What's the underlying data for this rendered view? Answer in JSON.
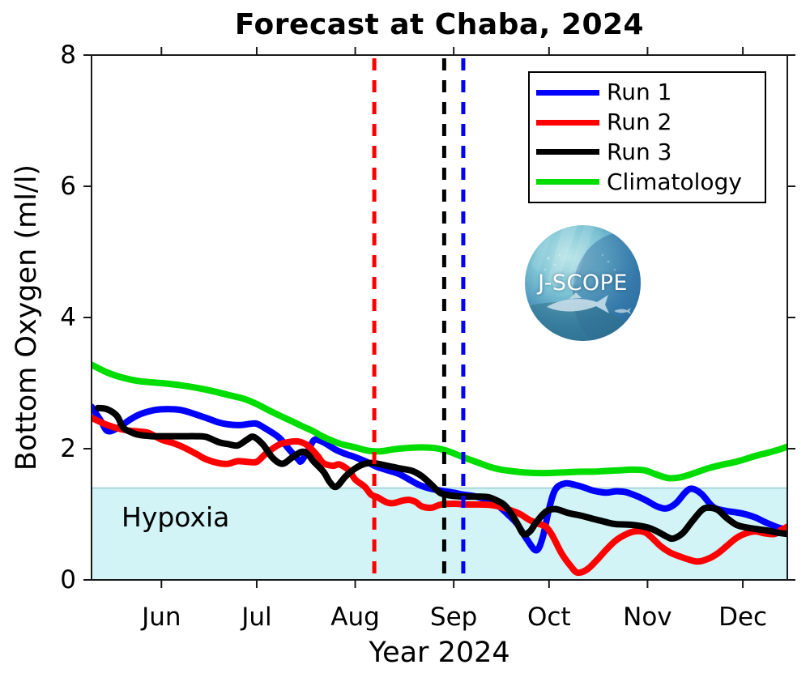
{
  "title": "Forecast at Chaba, 2024",
  "axes": {
    "xlabel": "Year 2024",
    "ylabel": "Bottom Oxygen (ml/l)",
    "yticks": [
      0,
      2,
      4,
      6,
      8
    ],
    "xticks": [
      "Jun",
      "Jul",
      "Aug",
      "Sep",
      "Oct",
      "Nov",
      "Dec"
    ]
  },
  "hypoxia_label": "Hypoxia",
  "logo_text": "J-SCOPE",
  "colors": {
    "run1": "#0000ff",
    "run2": "#ff0000",
    "run3": "#000000",
    "climatology": "#00dd00",
    "hypoxia_fill": "#d2f4f6",
    "hypoxia_edge": "#a8d8dc",
    "axis": "#1a1a1a"
  },
  "legend": {
    "items": [
      {
        "label": "Run 1",
        "color": "#0000ff"
      },
      {
        "label": "Run 2",
        "color": "#ff0000"
      },
      {
        "label": "Run 3",
        "color": "#000000"
      },
      {
        "label": "Climatology",
        "color": "#00dd00"
      }
    ]
  },
  "chart_data": {
    "type": "line",
    "title": "Forecast at Chaba, 2024",
    "xlabel": "Year 2024",
    "ylabel": "Bottom Oxygen (ml/l)",
    "x_unit": "day_of_year_2024",
    "xlim": [
      131,
      350
    ],
    "ylim": [
      0,
      8
    ],
    "grid": false,
    "legend_position": "upper right",
    "x_ticks": [
      {
        "label": "Jun",
        "day_of_year": 153
      },
      {
        "label": "Jul",
        "day_of_year": 183
      },
      {
        "label": "Aug",
        "day_of_year": 214
      },
      {
        "label": "Sep",
        "day_of_year": 245
      },
      {
        "label": "Oct",
        "day_of_year": 275
      },
      {
        "label": "Nov",
        "day_of_year": 306
      },
      {
        "label": "Dec",
        "day_of_year": 336
      }
    ],
    "hypoxia_region": {
      "label": "Hypoxia",
      "threshold_ml_per_l": 1.4
    },
    "init_lines": [
      {
        "name": "run2-init-line",
        "color": "#ff0000",
        "day_of_year": 220
      },
      {
        "name": "run3-init-line",
        "color": "#000000",
        "day_of_year": 242
      },
      {
        "name": "run1-init-line",
        "color": "#0000ff",
        "day_of_year": 248
      }
    ],
    "series": [
      {
        "name": "Run 1",
        "color": "#0000ff",
        "points": [
          [
            131,
            2.64
          ],
          [
            134,
            2.42
          ],
          [
            136,
            2.27
          ],
          [
            139,
            2.31
          ],
          [
            143,
            2.44
          ],
          [
            146,
            2.52
          ],
          [
            150,
            2.58
          ],
          [
            153,
            2.6
          ],
          [
            157,
            2.6
          ],
          [
            160,
            2.58
          ],
          [
            164,
            2.52
          ],
          [
            167,
            2.47
          ],
          [
            171,
            2.4
          ],
          [
            174,
            2.37
          ],
          [
            178,
            2.36
          ],
          [
            181,
            2.38
          ],
          [
            183,
            2.38
          ],
          [
            186,
            2.3
          ],
          [
            190,
            2.17
          ],
          [
            193,
            2.0
          ],
          [
            196,
            1.84
          ],
          [
            197,
            1.81
          ],
          [
            199,
            1.96
          ],
          [
            201,
            2.13
          ],
          [
            203,
            2.12
          ],
          [
            205,
            2.07
          ],
          [
            208,
            1.98
          ],
          [
            211,
            1.92
          ],
          [
            214,
            1.87
          ],
          [
            218,
            1.79
          ],
          [
            221,
            1.72
          ],
          [
            225,
            1.66
          ],
          [
            228,
            1.61
          ],
          [
            231,
            1.53
          ],
          [
            234,
            1.45
          ],
          [
            237,
            1.4
          ],
          [
            241,
            1.36
          ],
          [
            245,
            1.33
          ],
          [
            248,
            1.3
          ],
          [
            252,
            1.27
          ],
          [
            256,
            1.21
          ],
          [
            259,
            1.13
          ],
          [
            262,
            1.0
          ],
          [
            265,
            0.85
          ],
          [
            268,
            0.62
          ],
          [
            271,
            0.45
          ],
          [
            273,
            0.65
          ],
          [
            275,
            1.08
          ],
          [
            277,
            1.38
          ],
          [
            280,
            1.47
          ],
          [
            283,
            1.45
          ],
          [
            286,
            1.41
          ],
          [
            289,
            1.36
          ],
          [
            293,
            1.33
          ],
          [
            296,
            1.35
          ],
          [
            299,
            1.34
          ],
          [
            303,
            1.27
          ],
          [
            306,
            1.2
          ],
          [
            309,
            1.12
          ],
          [
            312,
            1.09
          ],
          [
            315,
            1.17
          ],
          [
            318,
            1.34
          ],
          [
            320,
            1.39
          ],
          [
            323,
            1.31
          ],
          [
            326,
            1.14
          ],
          [
            328,
            1.08
          ],
          [
            331,
            1.05
          ],
          [
            336,
            1.01
          ],
          [
            340,
            0.95
          ],
          [
            343,
            0.88
          ],
          [
            347,
            0.8
          ],
          [
            350,
            0.76
          ]
        ]
      },
      {
        "name": "Run 2",
        "color": "#ff0000",
        "points": [
          [
            131,
            2.47
          ],
          [
            136,
            2.36
          ],
          [
            141,
            2.29
          ],
          [
            146,
            2.26
          ],
          [
            149,
            2.24
          ],
          [
            153,
            2.14
          ],
          [
            157,
            2.08
          ],
          [
            160,
            2.02
          ],
          [
            164,
            1.92
          ],
          [
            167,
            1.84
          ],
          [
            171,
            1.78
          ],
          [
            174,
            1.77
          ],
          [
            177,
            1.81
          ],
          [
            180,
            1.8
          ],
          [
            183,
            1.8
          ],
          [
            186,
            1.93
          ],
          [
            190,
            2.06
          ],
          [
            193,
            2.1
          ],
          [
            196,
            2.11
          ],
          [
            199,
            2.05
          ],
          [
            202,
            1.9
          ],
          [
            204,
            1.78
          ],
          [
            207,
            1.74
          ],
          [
            209,
            1.76
          ],
          [
            212,
            1.67
          ],
          [
            214,
            1.53
          ],
          [
            217,
            1.42
          ],
          [
            219,
            1.3
          ],
          [
            221,
            1.26
          ],
          [
            224,
            1.18
          ],
          [
            226,
            1.17
          ],
          [
            229,
            1.21
          ],
          [
            231,
            1.22
          ],
          [
            233,
            1.19
          ],
          [
            235,
            1.12
          ],
          [
            238,
            1.1
          ],
          [
            241,
            1.15
          ],
          [
            245,
            1.16
          ],
          [
            249,
            1.15
          ],
          [
            253,
            1.15
          ],
          [
            257,
            1.14
          ],
          [
            260,
            1.11
          ],
          [
            263,
            1.06
          ],
          [
            266,
            1.0
          ],
          [
            269,
            0.91
          ],
          [
            272,
            0.85
          ],
          [
            274,
            0.81
          ],
          [
            276,
            0.68
          ],
          [
            279,
            0.4
          ],
          [
            282,
            0.2
          ],
          [
            284,
            0.11
          ],
          [
            287,
            0.16
          ],
          [
            290,
            0.3
          ],
          [
            293,
            0.46
          ],
          [
            296,
            0.6
          ],
          [
            299,
            0.69
          ],
          [
            302,
            0.74
          ],
          [
            305,
            0.73
          ],
          [
            307,
            0.66
          ],
          [
            310,
            0.52
          ],
          [
            313,
            0.42
          ],
          [
            316,
            0.36
          ],
          [
            319,
            0.31
          ],
          [
            322,
            0.28
          ],
          [
            325,
            0.32
          ],
          [
            328,
            0.4
          ],
          [
            331,
            0.52
          ],
          [
            334,
            0.64
          ],
          [
            337,
            0.71
          ],
          [
            340,
            0.74
          ],
          [
            343,
            0.71
          ],
          [
            346,
            0.7
          ],
          [
            348,
            0.76
          ],
          [
            350,
            0.81
          ]
        ]
      },
      {
        "name": "Run 3",
        "color": "#000000",
        "points": [
          [
            133,
            2.62
          ],
          [
            136,
            2.6
          ],
          [
            139,
            2.5
          ],
          [
            141,
            2.32
          ],
          [
            144,
            2.24
          ],
          [
            146,
            2.21
          ],
          [
            150,
            2.19
          ],
          [
            153,
            2.19
          ],
          [
            157,
            2.19
          ],
          [
            160,
            2.19
          ],
          [
            164,
            2.19
          ],
          [
            167,
            2.18
          ],
          [
            171,
            2.1
          ],
          [
            174,
            2.07
          ],
          [
            177,
            2.05
          ],
          [
            180,
            2.14
          ],
          [
            182,
            2.18
          ],
          [
            185,
            2.06
          ],
          [
            188,
            1.86
          ],
          [
            191,
            1.77
          ],
          [
            194,
            1.86
          ],
          [
            197,
            1.95
          ],
          [
            199,
            1.92
          ],
          [
            201,
            1.8
          ],
          [
            204,
            1.65
          ],
          [
            206,
            1.49
          ],
          [
            208,
            1.42
          ],
          [
            211,
            1.58
          ],
          [
            214,
            1.7
          ],
          [
            217,
            1.77
          ],
          [
            220,
            1.78
          ],
          [
            224,
            1.74
          ],
          [
            228,
            1.7
          ],
          [
            232,
            1.66
          ],
          [
            235,
            1.58
          ],
          [
            238,
            1.45
          ],
          [
            241,
            1.32
          ],
          [
            245,
            1.28
          ],
          [
            249,
            1.27
          ],
          [
            253,
            1.27
          ],
          [
            256,
            1.26
          ],
          [
            259,
            1.2
          ],
          [
            261,
            1.14
          ],
          [
            263,
            1.02
          ],
          [
            265,
            0.86
          ],
          [
            267,
            0.7
          ],
          [
            269,
            0.74
          ],
          [
            271,
            0.88
          ],
          [
            274,
            1.04
          ],
          [
            277,
            1.08
          ],
          [
            281,
            1.02
          ],
          [
            285,
            0.98
          ],
          [
            289,
            0.93
          ],
          [
            293,
            0.88
          ],
          [
            296,
            0.85
          ],
          [
            301,
            0.84
          ],
          [
            306,
            0.8
          ],
          [
            309,
            0.74
          ],
          [
            312,
            0.66
          ],
          [
            314,
            0.63
          ],
          [
            317,
            0.71
          ],
          [
            320,
            0.89
          ],
          [
            323,
            1.06
          ],
          [
            325,
            1.1
          ],
          [
            328,
            1.07
          ],
          [
            331,
            0.94
          ],
          [
            334,
            0.84
          ],
          [
            337,
            0.8
          ],
          [
            341,
            0.77
          ],
          [
            344,
            0.75
          ],
          [
            347,
            0.72
          ],
          [
            350,
            0.7
          ]
        ]
      },
      {
        "name": "Climatology",
        "color": "#00dd00",
        "points": [
          [
            131,
            3.28
          ],
          [
            136,
            3.16
          ],
          [
            141,
            3.08
          ],
          [
            146,
            3.03
          ],
          [
            153,
            3.0
          ],
          [
            160,
            2.96
          ],
          [
            167,
            2.9
          ],
          [
            174,
            2.82
          ],
          [
            179,
            2.76
          ],
          [
            183,
            2.68
          ],
          [
            187,
            2.58
          ],
          [
            190,
            2.51
          ],
          [
            194,
            2.42
          ],
          [
            197,
            2.35
          ],
          [
            201,
            2.26
          ],
          [
            204,
            2.18
          ],
          [
            209,
            2.08
          ],
          [
            214,
            2.02
          ],
          [
            218,
            1.97
          ],
          [
            222,
            1.96
          ],
          [
            226,
            1.99
          ],
          [
            230,
            2.01
          ],
          [
            235,
            2.02
          ],
          [
            239,
            2.01
          ],
          [
            242,
            1.98
          ],
          [
            245,
            1.93
          ],
          [
            248,
            1.87
          ],
          [
            252,
            1.8
          ],
          [
            256,
            1.73
          ],
          [
            259,
            1.69
          ],
          [
            263,
            1.66
          ],
          [
            267,
            1.64
          ],
          [
            271,
            1.63
          ],
          [
            275,
            1.63
          ],
          [
            280,
            1.64
          ],
          [
            285,
            1.65
          ],
          [
            289,
            1.65
          ],
          [
            293,
            1.66
          ],
          [
            297,
            1.67
          ],
          [
            301,
            1.68
          ],
          [
            305,
            1.67
          ],
          [
            308,
            1.62
          ],
          [
            311,
            1.57
          ],
          [
            313,
            1.55
          ],
          [
            316,
            1.56
          ],
          [
            319,
            1.6
          ],
          [
            322,
            1.65
          ],
          [
            325,
            1.7
          ],
          [
            329,
            1.75
          ],
          [
            333,
            1.79
          ],
          [
            336,
            1.83
          ],
          [
            340,
            1.89
          ],
          [
            344,
            1.94
          ],
          [
            347,
            1.98
          ],
          [
            350,
            2.03
          ]
        ]
      }
    ]
  }
}
